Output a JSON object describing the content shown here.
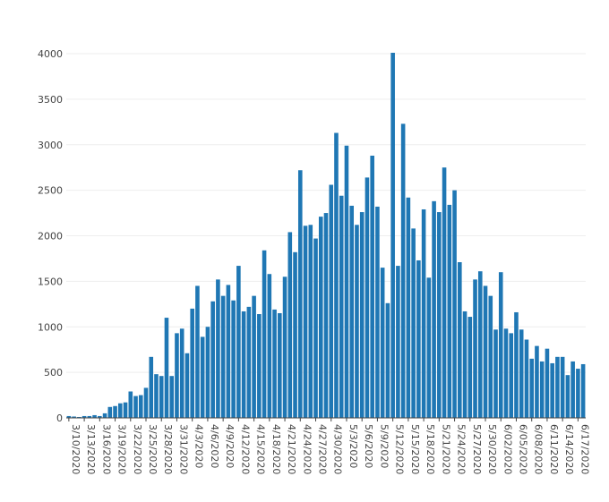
{
  "chart_data": {
    "type": "bar",
    "title": "",
    "xlabel": "",
    "ylabel": "",
    "ylim": [
      0,
      4000
    ],
    "yticks": [
      0,
      500,
      1000,
      1500,
      2000,
      2500,
      3000,
      3500,
      4000
    ],
    "grid": true,
    "legend": "none",
    "colors": {
      "bar": "#1f77b4",
      "grid": "#eeeeee",
      "axis": "#444444"
    },
    "x_tick_labels": [
      "3/10/2020",
      "3/13/2020",
      "3/16/2020",
      "3/19/2020",
      "3/22/2020",
      "3/25/2020",
      "3/28/2020",
      "3/31/2020",
      "4/3/2020",
      "4/6/2020",
      "4/9/2020",
      "4/12/2020",
      "4/15/2020",
      "4/18/2020",
      "4/21/2020",
      "4/24/2020",
      "4/27/2020",
      "4/30/2020",
      "5/3/2020",
      "5/6/2020",
      "5/9/2020",
      "5/12/2020",
      "5/15/2020",
      "5/18/2020",
      "5/21/2020",
      "5/24/2020",
      "5/27/2020",
      "5/30/2020",
      "6/02/2020",
      "6/05/2020",
      "6/08/2020",
      "6/11/2020",
      "6/14/2020",
      "6/17/2020"
    ],
    "x_tick_every": 3,
    "values": [
      20,
      15,
      10,
      20,
      20,
      30,
      20,
      50,
      120,
      130,
      160,
      170,
      290,
      240,
      250,
      330,
      670,
      480,
      460,
      1100,
      460,
      930,
      980,
      710,
      1200,
      1450,
      890,
      1000,
      1280,
      1520,
      1340,
      1460,
      1290,
      1670,
      1170,
      1220,
      1340,
      1140,
      1840,
      1580,
      1190,
      1150,
      1550,
      2040,
      1820,
      2720,
      2110,
      2120,
      1970,
      2210,
      2250,
      2560,
      3130,
      2440,
      2990,
      2330,
      2120,
      2260,
      2640,
      2880,
      2320,
      1650,
      1260,
      4010,
      1670,
      3230,
      2420,
      2080,
      1730,
      2290,
      1540,
      2380,
      2260,
      2750,
      2340,
      2500,
      1710,
      1170,
      1110,
      1520,
      1610,
      1450,
      1340,
      970,
      1600,
      980,
      930,
      1160,
      970,
      860,
      650,
      790,
      620,
      760,
      600,
      670,
      670,
      470,
      620,
      540,
      590
    ]
  }
}
